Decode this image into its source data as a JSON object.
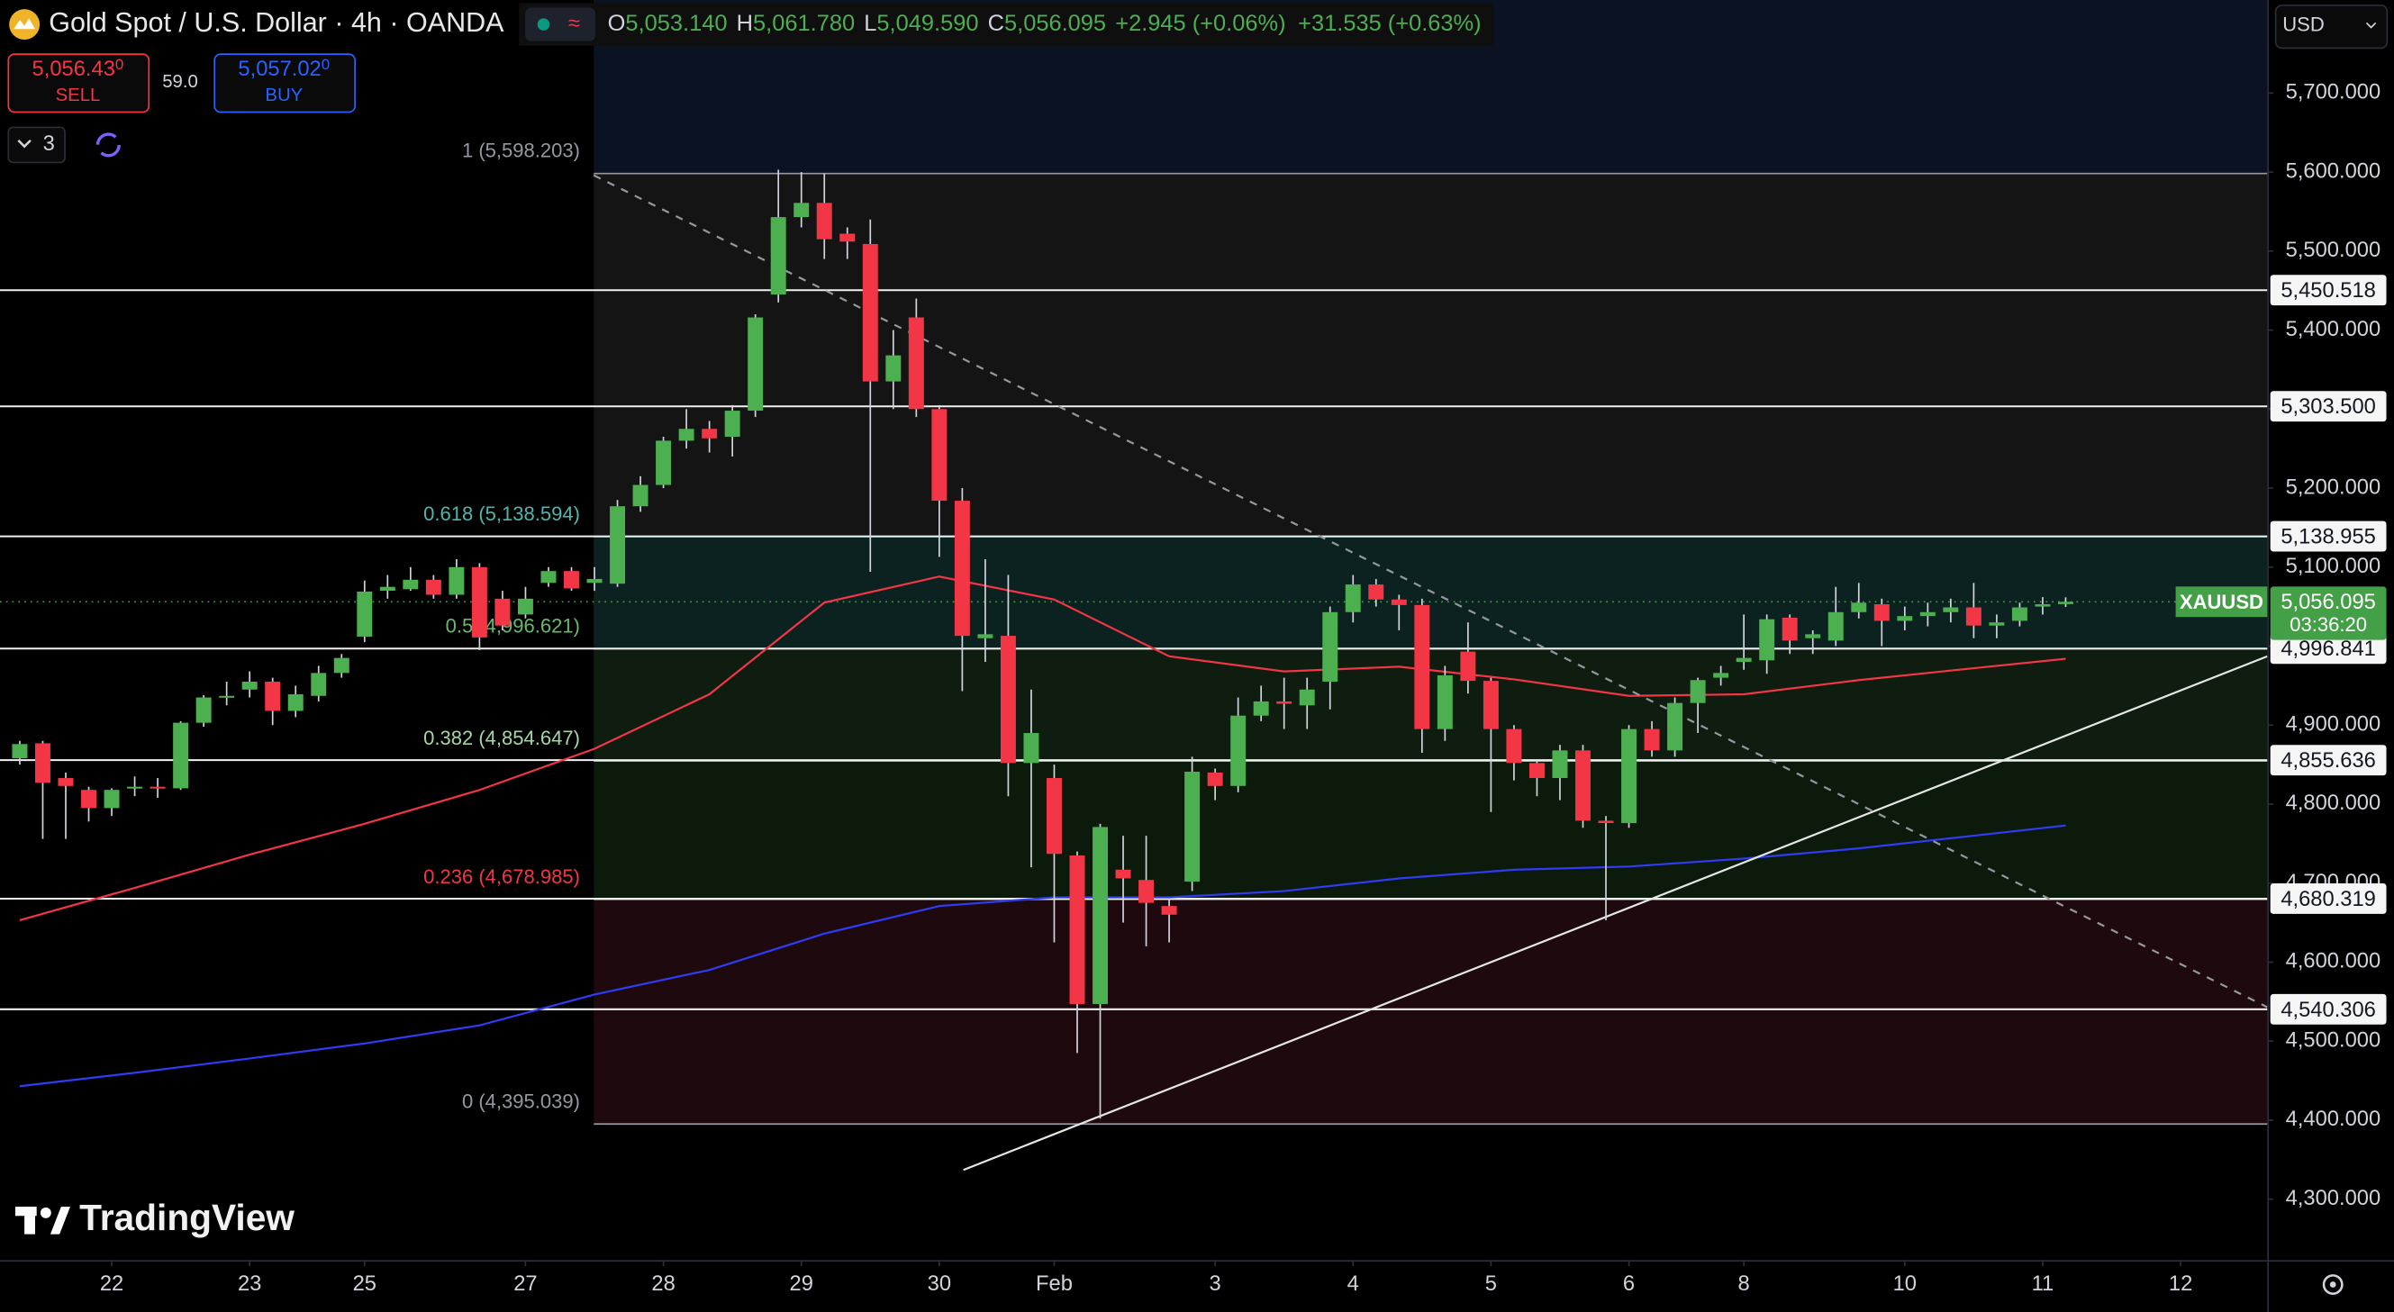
{
  "header": {
    "legend": [
      {
        "label": "O",
        "value": "5,053.140"
      },
      {
        "label": "H",
        "value": "5,061.780"
      },
      {
        "label": "L",
        "value": "5,049.590"
      },
      {
        "label": "C",
        "value": "5,056.095"
      }
    ],
    "change": "+2.945 (+0.06%)",
    "change_extended": "+31.535 (+0.63%)",
    "sell_price": "5,056.43",
    "sell_price_pip": "0",
    "sell_label": "SELL",
    "spread": "59.0",
    "buy_price": "5,057.02",
    "buy_price_pip": "0",
    "buy_label": "BUY",
    "indicator_count": "3",
    "currency": "USD",
    "watermark": "TradingView"
  },
  "chart_data": {
    "type": "candlestick",
    "title": "Gold Spot / U.S. Dollar · 4h · OANDA",
    "open": [
      4858,
      4877,
      4833,
      4818,
      4795,
      4820,
      4822,
      4820,
      4903,
      4935,
      4945,
      4955,
      4918,
      4937,
      4966,
      5012,
      5070,
      5072,
      5084,
      5065,
      5100,
      5060,
      5040,
      5080,
      5095,
      5080,
      5079,
      5177,
      5204,
      5260,
      5275,
      5265,
      5298,
      5445,
      5543,
      5561,
      5522,
      5509,
      5335,
      5416,
      5300,
      5184,
      5010,
      5013,
      4852,
      4833,
      4735,
      4547,
      4717,
      4704,
      4671,
      4702,
      4840,
      4823,
      4912,
      4930,
      4925,
      4955,
      5043,
      5078,
      5059,
      5052,
      4895,
      4993,
      4956,
      4895,
      4852,
      4833,
      4868,
      4779,
      4776,
      4895,
      4868,
      4928,
      4960,
      4980,
      4982,
      5036,
      5010,
      5007,
      5043,
      5053,
      5032,
      5038,
      5043,
      5049,
      5026,
      5032,
      5050,
      5053.14
    ],
    "high": [
      4880,
      4880,
      4840,
      4822,
      4820,
      4835,
      4833,
      4905,
      4938,
      4955,
      4968,
      4960,
      4950,
      4975,
      4990,
      5083,
      5090,
      5100,
      5090,
      5110,
      5105,
      5070,
      5075,
      5100,
      5100,
      5100,
      5185,
      5215,
      5265,
      5300,
      5285,
      5305,
      5420,
      5603,
      5600,
      5598,
      5530,
      5540,
      5400,
      5440,
      5305,
      5200,
      5110,
      5090,
      4945,
      4850,
      4740,
      4775,
      4760,
      4760,
      4680,
      4860,
      4845,
      4935,
      4950,
      4960,
      4960,
      5050,
      5090,
      5085,
      5065,
      5060,
      4975,
      5030,
      4960,
      4900,
      4855,
      4875,
      4875,
      4785,
      4900,
      4905,
      4935,
      4960,
      4975,
      5040,
      5040,
      5040,
      5020,
      5075,
      5080,
      5060,
      5050,
      5055,
      5060,
      5080,
      5040,
      5055,
      5062,
      5061.78
    ],
    "low": [
      4850,
      4756,
      4756,
      4778,
      4785,
      4810,
      4808,
      4818,
      4898,
      4925,
      4935,
      4900,
      4910,
      4930,
      4960,
      5005,
      5060,
      5070,
      5060,
      5060,
      4995,
      5020,
      5035,
      5075,
      5070,
      5070,
      5075,
      5170,
      5200,
      5250,
      5245,
      5240,
      5290,
      5435,
      5530,
      5490,
      5490,
      5094,
      5300,
      5290,
      5113,
      4943,
      4980,
      4810,
      4720,
      4625,
      4485,
      4402,
      4650,
      4620,
      4625,
      4690,
      4805,
      4815,
      4905,
      4895,
      4895,
      4920,
      5030,
      5050,
      5020,
      4865,
      4880,
      4940,
      4790,
      4830,
      4810,
      4805,
      4770,
      4653,
      4770,
      4860,
      4860,
      4890,
      4950,
      4970,
      4965,
      4990,
      4990,
      5000,
      5035,
      5000,
      5020,
      5025,
      5030,
      5010,
      5010,
      5025,
      5040,
      5049.59
    ],
    "close": [
      4876,
      4827,
      4823,
      4795,
      4818,
      4822,
      4820,
      4903,
      4935,
      4937,
      4955,
      4918,
      4939,
      4966,
      4985,
      5069,
      5075,
      5084,
      5065,
      5100,
      5011,
      5026,
      5060,
      5095,
      5073,
      5085,
      5177,
      5204,
      5260,
      5275,
      5263,
      5298,
      5416,
      5543,
      5561,
      5515,
      5512,
      5335,
      5368,
      5300,
      5184,
      5013,
      5015,
      4852,
      4890,
      4737,
      4547,
      4771,
      4706,
      4675,
      4660,
      4841,
      4823,
      4912,
      4930,
      4927,
      4945,
      5043,
      5078,
      5059,
      5052,
      4895,
      4963,
      4956,
      4895,
      4852,
      4833,
      4868,
      4779,
      4776,
      4895,
      4868,
      4928,
      4957,
      4966,
      4985,
      5034,
      5007,
      5015,
      5043,
      5055,
      5032,
      5038,
      5043,
      5049,
      5026,
      5030,
      5049,
      5053,
      5056.095
    ],
    "up_color": "#4caf50",
    "down_color": "#f23645",
    "wick_color": "#d1d4dc",
    "xlim": [
      -0.86,
      97.77
    ],
    "xticks": [
      {
        "value": 4,
        "label": "22"
      },
      {
        "value": 10,
        "label": "23"
      },
      {
        "value": 15,
        "label": "25"
      },
      {
        "value": 22,
        "label": "27"
      },
      {
        "value": 28,
        "label": "28"
      },
      {
        "value": 34,
        "label": "29"
      },
      {
        "value": 40,
        "label": "30"
      },
      {
        "value": 45,
        "label": "Feb"
      },
      {
        "value": 52,
        "label": "3"
      },
      {
        "value": 58,
        "label": "4"
      },
      {
        "value": 64,
        "label": "5"
      },
      {
        "value": 70,
        "label": "6"
      },
      {
        "value": 75,
        "label": "8"
      },
      {
        "value": 82,
        "label": "10"
      },
      {
        "value": 88,
        "label": "11"
      },
      {
        "value": 94,
        "label": "12"
      }
    ],
    "ylim": [
      4222.8,
      5817.8
    ],
    "yticks": [
      {
        "value": 5700,
        "label": "5,700.000"
      },
      {
        "value": 5600,
        "label": "5,600.000"
      },
      {
        "value": 5500,
        "label": "5,500.000"
      },
      {
        "value": 5400,
        "label": "5,400.000"
      },
      {
        "value": 5300,
        "label": "5,300.000"
      },
      {
        "value": 5200,
        "label": "5,200.000"
      },
      {
        "value": 5100,
        "label": "5,100.000"
      },
      {
        "value": 5000,
        "label": "5,000.000"
      },
      {
        "value": 4900,
        "label": "4,900.000"
      },
      {
        "value": 4800,
        "label": "4,800.000"
      },
      {
        "value": 4700,
        "label": "4,700.000"
      },
      {
        "value": 4600,
        "label": "4,600.000"
      },
      {
        "value": 4500,
        "label": "4,500.000"
      },
      {
        "value": 4400,
        "label": "4,400.000"
      },
      {
        "value": 4300,
        "label": "4,300.000"
      }
    ],
    "moving_averages": [
      {
        "color": "#f23645",
        "x": [
          0,
          5,
          10,
          15,
          20,
          25,
          30,
          35,
          40,
          45,
          50,
          55,
          60,
          65,
          70,
          75,
          80,
          85,
          89
        ],
        "values": [
          4653,
          4694,
          4736,
          4775,
          4818,
          4870,
          4939,
          5055,
          5088,
          5059,
          4987,
          4968,
          4974,
          4958,
          4937,
          4939,
          4957,
          4972,
          4984
        ]
      },
      {
        "color": "#2f3cf5",
        "x": [
          0,
          5,
          10,
          15,
          20,
          25,
          30,
          35,
          40,
          45,
          50,
          55,
          60,
          65,
          70,
          75,
          80,
          85,
          89
        ],
        "values": [
          4443,
          4460,
          4478,
          4497,
          4520,
          4559,
          4590,
          4636,
          4671,
          4682,
          4682,
          4690,
          4706,
          4717,
          4721,
          4731,
          4744,
          4760,
          4773
        ]
      }
    ],
    "trendlines": [
      {
        "color": "#e6e6e6",
        "dashed": false,
        "x": [
          41.05,
          97.77
        ],
        "values": [
          4337,
          4987
        ]
      },
      {
        "color": "#9598a1",
        "dashed": true,
        "x": [
          24.97,
          97.77
        ],
        "values": [
          5596,
          4543
        ]
      }
    ],
    "horizontal_lines": [
      {
        "value": 5450.518,
        "label": "5,450.518"
      },
      {
        "value": 5303.5,
        "label": "5,303.500"
      },
      {
        "value": 5138.955,
        "label": "5,138.955"
      },
      {
        "value": 4996.841,
        "label": "4,996.841"
      },
      {
        "value": 4855.636,
        "label": "4,855.636"
      },
      {
        "value": 4680.319,
        "label": "4,680.319"
      },
      {
        "value": 4540.306,
        "label": "4,540.306"
      }
    ],
    "horizontal_line_color": "#f0f0f0",
    "fibonacci": {
      "start_x": 24.97,
      "extension_fill": "#0b1323",
      "levels": [
        {
          "value": 5598.203,
          "label": "1 (5,598.203)",
          "color": "#9598a1",
          "fill": "#141414"
        },
        {
          "value": 5138.594,
          "label": "0.618 (5,138.594)",
          "color": "#4fb6ad",
          "fill": "#0c2220"
        },
        {
          "value": 4996.621,
          "label": "0.5 (4,996.621)",
          "color": "#66bb6a",
          "fill": "#0f1d10"
        },
        {
          "value": 4854.647,
          "label": "0.382 (4,854.647)",
          "color": "#a5d6a7",
          "fill": "#0c1a0c"
        },
        {
          "value": 4678.985,
          "label": "0.236 (4,678.985)",
          "color": "#f23645",
          "fill": "#1e0a0e"
        },
        {
          "value": 4395.039,
          "label": "0 (4,395.039)",
          "color": "#9598a1"
        }
      ]
    },
    "last_price": {
      "value": 5056.095,
      "label": "5,056.095",
      "symbol": "XAUUSD",
      "countdown": "03:36:20",
      "color": "#43a047"
    }
  }
}
